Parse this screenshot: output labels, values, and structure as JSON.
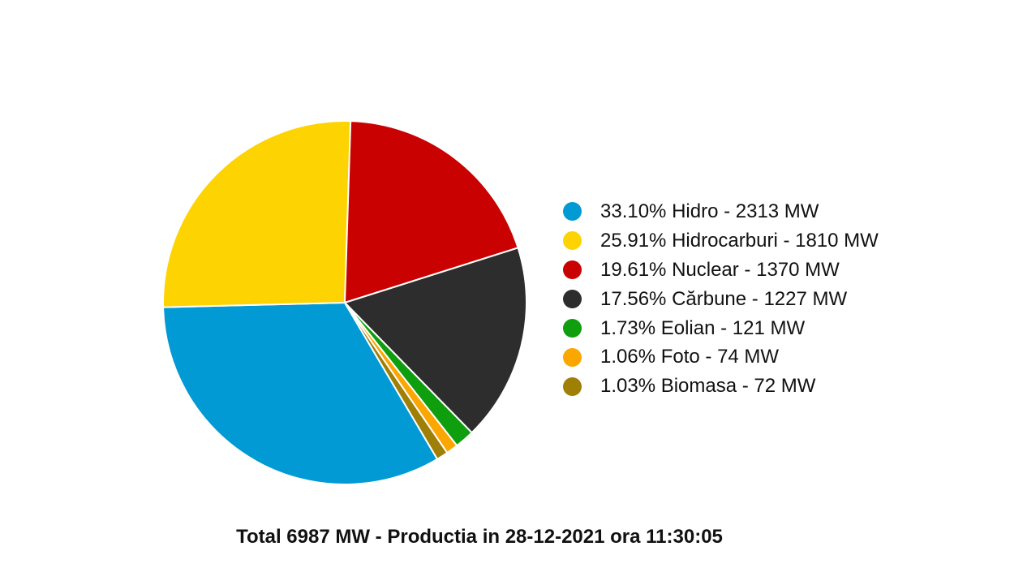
{
  "chart_data": {
    "type": "pie",
    "slices": [
      {
        "label": "33.10% Hidro - 2313 MW",
        "name": "Hidro",
        "percent": 33.1,
        "value": 2313,
        "color": "#029ad4"
      },
      {
        "label": "25.91% Hidrocarburi - 1810 MW",
        "name": "Hidrocarburi",
        "percent": 25.91,
        "value": 1810,
        "color": "#fdd301"
      },
      {
        "label": "19.61% Nuclear - 1370 MW",
        "name": "Nuclear",
        "percent": 19.61,
        "value": 1370,
        "color": "#c90101"
      },
      {
        "label": "17.56% Cărbune - 1227 MW",
        "name": "Cărbune",
        "percent": 17.56,
        "value": 1227,
        "color": "#2d2d2d"
      },
      {
        "label": "1.73% Eolian - 121 MW",
        "name": "Eolian",
        "percent": 1.73,
        "value": 121,
        "color": "#0e9e0e"
      },
      {
        "label": "1.06% Foto - 74 MW",
        "name": "Foto",
        "percent": 1.06,
        "value": 74,
        "color": "#fca602"
      },
      {
        "label": "1.03% Biomasa - 72 MW",
        "name": "Biomasa",
        "percent": 1.03,
        "value": 72,
        "color": "#9f7f06"
      }
    ],
    "legend_position": "right",
    "footer": "Total 6987 MW - Productia in 28-12-2021 ora 11:30:05"
  }
}
